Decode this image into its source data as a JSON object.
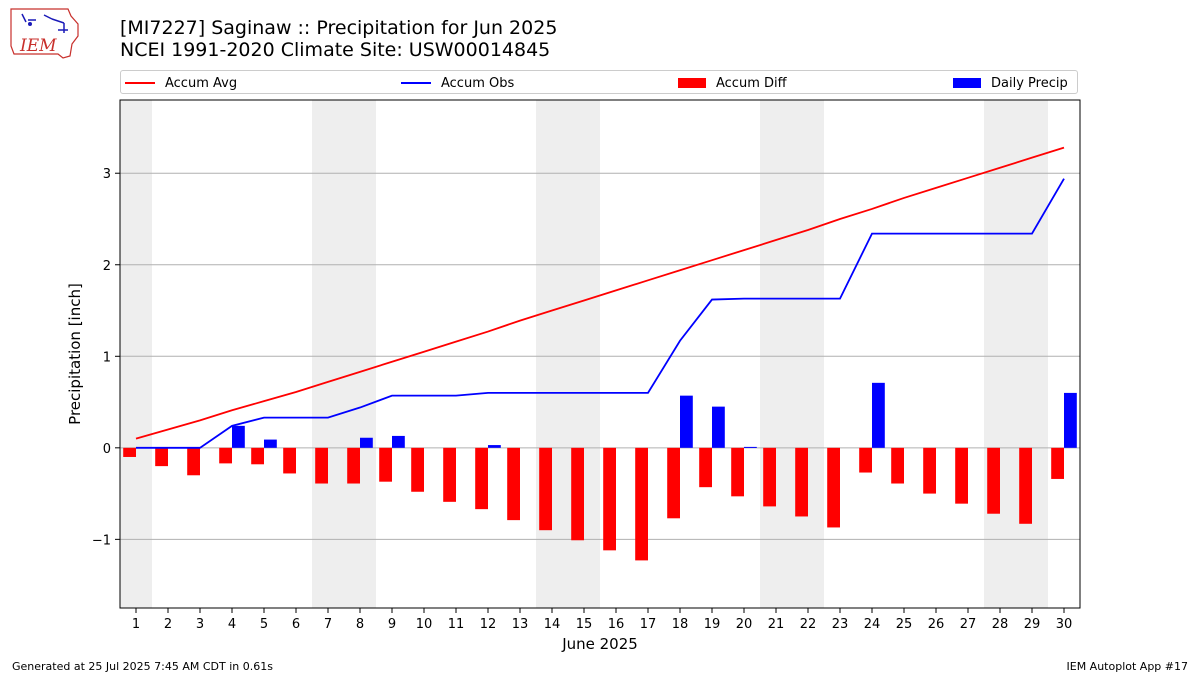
{
  "header": {
    "logo_text": "IEM",
    "title_line1": "[MI7227] Saginaw :: Precipitation for Jun 2025",
    "title_line2": "NCEI 1991-2020 Climate Site: USW00014845"
  },
  "legend": {
    "placement": "top",
    "items": [
      {
        "label": "Accum Avg",
        "kind": "line",
        "color": "#ff0000"
      },
      {
        "label": "Accum Obs",
        "kind": "line",
        "color": "#0000ff"
      },
      {
        "label": "Accum Diff",
        "kind": "bar",
        "color": "#ff0000"
      },
      {
        "label": "Daily Precip",
        "kind": "bar",
        "color": "#0000ff"
      }
    ]
  },
  "footer": {
    "generated": "Generated at 25 Jul 2025 7:45 AM CDT in 0.61s",
    "app": "IEM Autoplot App #17"
  },
  "chart_data": {
    "type": "bar",
    "title": "[MI7227] Saginaw :: Precipitation for Jun 2025",
    "subtitle": "NCEI 1991-2020 Climate Site: USW00014845",
    "xlabel": "June 2025",
    "ylabel": "Precipitation [inch]",
    "x": [
      1,
      2,
      3,
      4,
      5,
      6,
      7,
      8,
      9,
      10,
      11,
      12,
      13,
      14,
      15,
      16,
      17,
      18,
      19,
      20,
      21,
      22,
      23,
      24,
      25,
      26,
      27,
      28,
      29,
      30
    ],
    "xlim": [
      0.5,
      30.5
    ],
    "ylim": [
      -1.75,
      3.8
    ],
    "yticks": [
      -1,
      0,
      1,
      2,
      3
    ],
    "grid": "horizontal",
    "weekend_shading": [
      [
        0.5,
        1.5
      ],
      [
        6.5,
        8.5
      ],
      [
        13.5,
        15.5
      ],
      [
        20.5,
        22.5
      ],
      [
        27.5,
        29.5
      ]
    ],
    "colors": {
      "avg": "#ff0000",
      "obs": "#0000ff",
      "diff": "#ff0000",
      "daily": "#0000ff",
      "shade": "#eeeeee",
      "grid": "#b0b0b0"
    },
    "series": [
      {
        "name": "Accum Avg",
        "kind": "line",
        "values": [
          0.1,
          0.2,
          0.3,
          0.41,
          0.51,
          0.61,
          0.72,
          0.83,
          0.94,
          1.05,
          1.16,
          1.27,
          1.39,
          1.5,
          1.61,
          1.72,
          1.83,
          1.94,
          2.05,
          2.16,
          2.27,
          2.38,
          2.5,
          2.61,
          2.73,
          2.84,
          2.95,
          3.06,
          3.17,
          3.28
        ]
      },
      {
        "name": "Accum Obs",
        "kind": "line",
        "values": [
          0.0,
          0.0,
          0.0,
          0.24,
          0.33,
          0.33,
          0.33,
          0.44,
          0.57,
          0.57,
          0.57,
          0.6,
          0.6,
          0.6,
          0.6,
          0.6,
          0.6,
          1.17,
          1.62,
          1.63,
          1.63,
          1.63,
          1.63,
          2.34,
          2.34,
          2.34,
          2.34,
          2.34,
          2.34,
          2.94
        ]
      },
      {
        "name": "Accum Diff",
        "kind": "bar",
        "values": [
          -0.1,
          -0.2,
          -0.3,
          -0.17,
          -0.18,
          -0.28,
          -0.39,
          -0.39,
          -0.37,
          -0.48,
          -0.59,
          -0.67,
          -0.79,
          -0.9,
          -1.01,
          -1.12,
          -1.23,
          -0.77,
          -0.43,
          -0.53,
          -0.64,
          -0.75,
          -0.87,
          -0.27,
          -0.39,
          -0.5,
          -0.61,
          -0.72,
          -0.83,
          -0.34
        ]
      },
      {
        "name": "Daily Precip",
        "kind": "bar",
        "values": [
          0.0,
          0.0,
          0.0,
          0.24,
          0.09,
          0.0,
          0.0,
          0.11,
          0.13,
          0.0,
          0.0,
          0.03,
          0.0,
          0.0,
          0.0,
          0.0,
          0.0,
          0.57,
          0.45,
          0.01,
          0.0,
          0.0,
          0.0,
          0.71,
          0.0,
          0.0,
          0.0,
          0.0,
          0.0,
          0.6
        ]
      }
    ]
  }
}
